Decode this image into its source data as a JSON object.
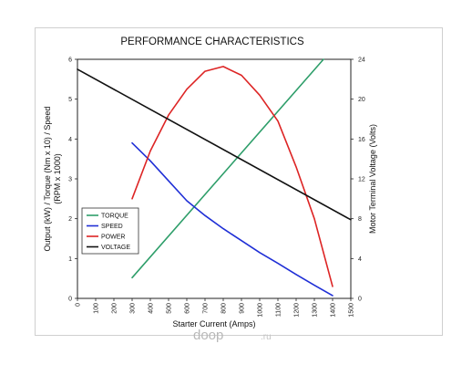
{
  "chart_data": {
    "type": "line",
    "title": "PERFORMANCE CHARACTERISTICS",
    "xlabel": "Starter Current (Amps)",
    "ylabel_left_line1": "Output (kW) / Torque (Nm x 10) / Speed",
    "ylabel_left_line2": "(RPM x 1000)",
    "ylabel_right": "Motor Terminal Voltage (Volts)",
    "xlim": [
      0,
      1500
    ],
    "ylim_left": [
      0,
      6
    ],
    "ylim_right": [
      0,
      24
    ],
    "x_ticks": [
      "0",
      "100",
      "200",
      "300",
      "400",
      "500",
      "600",
      "700",
      "800",
      "900",
      "1000",
      "1100",
      "1200",
      "1300",
      "1400",
      "1500"
    ],
    "y_left_ticks": [
      "0",
      "1",
      "2",
      "3",
      "4",
      "5",
      "6"
    ],
    "y_right_ticks": [
      "0",
      "4",
      "8",
      "12",
      "16",
      "20",
      "24"
    ],
    "grid": false,
    "legend_position": "center-left",
    "series": [
      {
        "name": "TORQUE",
        "color": "#2e9e6a",
        "axis": "left",
        "x": [
          300,
          1350
        ],
        "y": [
          0.52,
          6.0
        ]
      },
      {
        "name": "SPEED",
        "color": "#1f2fd6",
        "axis": "left",
        "x": [
          300,
          400,
          500,
          600,
          700,
          800,
          900,
          1000,
          1100,
          1200,
          1300,
          1400
        ],
        "y": [
          3.9,
          3.45,
          2.95,
          2.45,
          2.08,
          1.75,
          1.45,
          1.15,
          0.88,
          0.6,
          0.33,
          0.07
        ]
      },
      {
        "name": "POWER",
        "color": "#dd2424",
        "axis": "left",
        "x": [
          300,
          400,
          500,
          600,
          700,
          800,
          900,
          1000,
          1100,
          1200,
          1300,
          1400
        ],
        "y": [
          2.5,
          3.7,
          4.6,
          5.25,
          5.7,
          5.82,
          5.6,
          5.1,
          4.45,
          3.3,
          2.0,
          0.3
        ]
      },
      {
        "name": "VOLTAGE",
        "color": "#111111",
        "axis": "right",
        "x": [
          0,
          1500
        ],
        "y": [
          23.0,
          7.9
        ]
      }
    ]
  },
  "watermark": {
    "brand": "doop",
    "suffix": ".ru"
  }
}
